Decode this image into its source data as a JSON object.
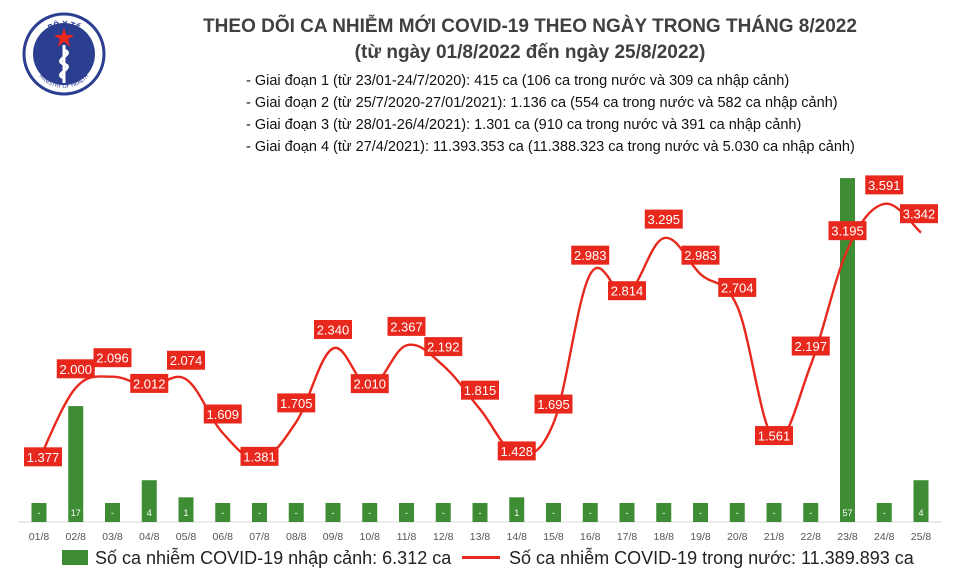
{
  "title_line1": "THEO DÕI CA NHIỄM MỚI COVID-19 THEO NGÀY TRONG THÁNG 8/2022",
  "title_line2": "(từ ngày 01/8/2022 đến ngày 25/8/2022)",
  "logo": {
    "top_text": "BỘ Y TẾ",
    "bottom_text": "MINISTRY OF HEALTH"
  },
  "notes": [
    "- Giai đoạn 1 (từ 23/01-24/7/2020): 415 ca (106 ca trong nước và 309 ca nhập cảnh)",
    "- Giai đoạn 2 (từ 25/7/2020-27/01/2021): 1.136 ca (554 ca trong nước và 582 ca nhập cảnh)",
    "- Giai đoạn 3 (từ 28/01-26/4/2021): 1.301 ca (910 ca trong nước và 391 ca nhập cảnh)",
    "- Giai đoạn 4 (từ 27/4/2021): 11.393.353 ca (11.388.323 ca trong nước và 5.030 ca nhập cảnh)"
  ],
  "legend": {
    "bar_label": "Số ca nhiễm COVID-19 nhập cảnh: 6.312 ca",
    "line_label": "Số ca nhiễm COVID-19 trong nước: 11.389.893 ca"
  },
  "colors": {
    "bar": "#3e8d35",
    "line": "#e8281c",
    "text": "#404040"
  },
  "chart_data": {
    "type": "bar+line",
    "categories": [
      "01/8",
      "02/8",
      "03/8",
      "04/8",
      "05/8",
      "06/8",
      "07/8",
      "08/8",
      "09/8",
      "10/8",
      "11/8",
      "12/8",
      "13/8",
      "14/8",
      "15/8",
      "16/8",
      "17/8",
      "18/8",
      "19/8",
      "20/8",
      "21/8",
      "22/8",
      "23/8",
      "24/8",
      "25/8"
    ],
    "series": [
      {
        "kind": "line",
        "values": [
          1377,
          2000,
          2096,
          2012,
          2074,
          1609,
          1381,
          1705,
          2340,
          2010,
          2367,
          2192,
          1815,
          1428,
          1695,
          2983,
          2814,
          3295,
          2983,
          2704,
          1561,
          2197,
          3195,
          3591,
          3342
        ],
        "labels": [
          "1.377",
          "2.000",
          "2.096",
          "2.012",
          "2.074",
          "1.609",
          "1.381",
          "1.705",
          "2.340",
          "2.010",
          "2.367",
          "2.192",
          "1.815",
          "1.428",
          "1.695",
          "2.983",
          "2.814",
          "3.295",
          "2.983",
          "2.704",
          "1.561",
          "2.197",
          "3.195",
          "3.591",
          "3.342"
        ]
      },
      {
        "kind": "bar",
        "values": [
          0,
          17,
          0,
          4,
          1,
          0,
          0,
          0,
          0,
          0,
          0,
          0,
          0,
          1,
          0,
          0,
          0,
          0,
          0,
          0,
          0,
          0,
          57,
          0,
          4
        ],
        "labels": [
          "-",
          "17",
          "-",
          "4",
          "1",
          "-",
          "-",
          "-",
          "-",
          "-",
          "-",
          "-",
          "-",
          "1",
          "-",
          "-",
          "-",
          "-",
          "-",
          "-",
          "-",
          "-",
          "57",
          "-",
          "4"
        ]
      }
    ],
    "legend_position": "bottom"
  }
}
